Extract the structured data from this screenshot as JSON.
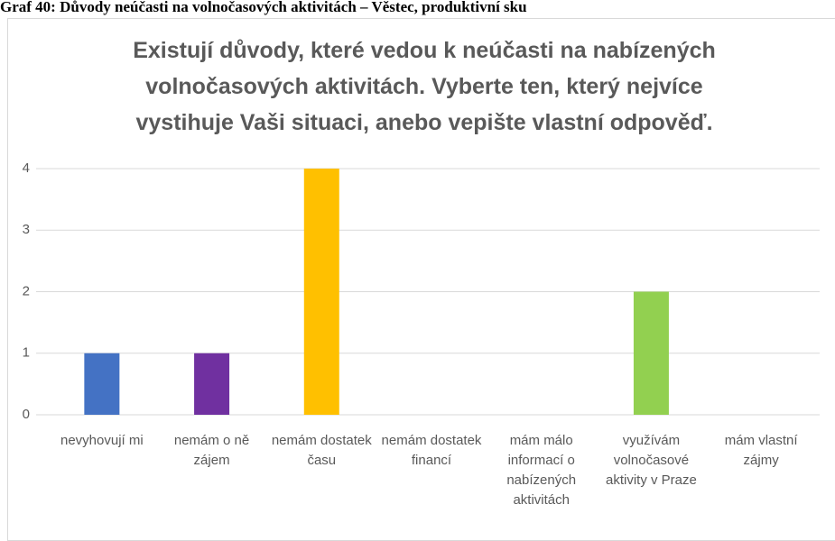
{
  "caption": "Graf 40: Důvody neúčasti na volnočasových aktivitách – Věstec, produktivní sku",
  "chart_data": {
    "type": "bar",
    "title": "Existují důvody, které vedou k neúčasti na nabízených volnočasových aktivitách. Vyberte ten, který nejvíce vystihuje Vaši situaci, anebo vepište vlastní odpověď.",
    "categories": [
      "nevyhovují mi",
      "nemám o ně zájem",
      "nemám dostatek času",
      "nemám dostatek financí",
      "mám málo informací o nabízených aktivitách",
      "využívám volnočasové aktivity v Praze",
      "mám vlastní zájmy"
    ],
    "values": [
      1,
      1,
      4,
      0,
      0,
      2,
      0
    ],
    "colors": [
      "#4472c4",
      "#7030a0",
      "#ffc000",
      "#a5a5a5",
      "#5b9bd5",
      "#92d050",
      "#ed7d31"
    ],
    "ylim": [
      0,
      4
    ],
    "yticks": [
      0,
      1,
      2,
      3,
      4
    ],
    "grid": true
  }
}
